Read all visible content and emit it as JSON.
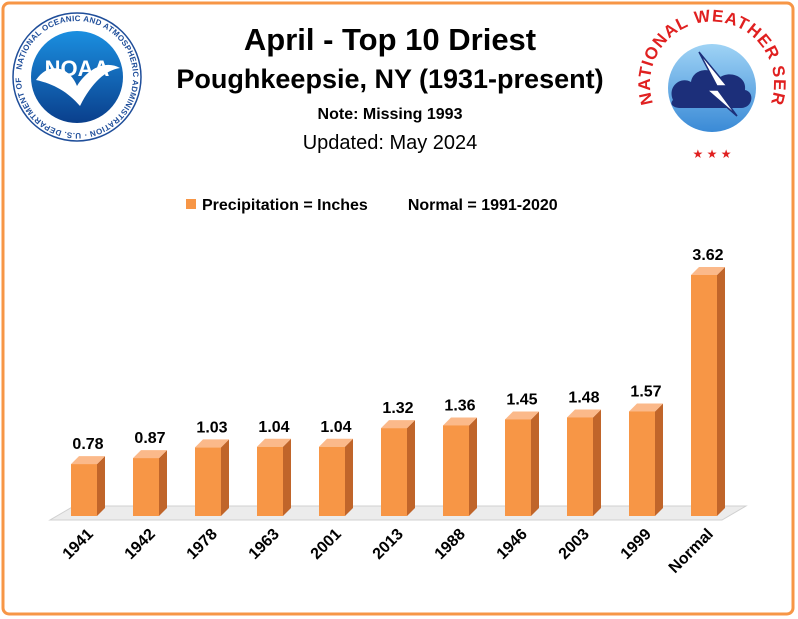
{
  "header": {
    "title": "April - Top 10 Driest",
    "subtitle": "Poughkeepsie, NY (1931-present)",
    "note": "Note: Missing 1993",
    "updated": "Updated:  May 2024"
  },
  "logos": {
    "noaa_text": "NOAA",
    "noaa_ring_text": "NATIONAL OCEANIC AND ATMOSPHERIC ADMINISTRATION · U.S. DEPARTMENT OF COMMERCE",
    "nws_ring_text": "NATIONAL WEATHER SERVICE"
  },
  "legend": {
    "series_label": "Precipitation = Inches",
    "normal_label": "Normal = 1991-2020"
  },
  "colors": {
    "bar_front": "#f79646",
    "bar_side": "#c0652a",
    "bar_top": "#fbb98a",
    "frame": "#f79646"
  },
  "chart_data": {
    "type": "bar",
    "categories": [
      "1941",
      "1942",
      "1978",
      "1963",
      "2001",
      "2013",
      "1988",
      "1946",
      "2003",
      "1999",
      "Normal"
    ],
    "values": [
      0.78,
      0.87,
      1.03,
      1.04,
      1.04,
      1.32,
      1.36,
      1.45,
      1.48,
      1.57,
      3.62
    ],
    "data_labels": [
      "0.78",
      "0.87",
      "1.03",
      "1.04",
      "1.04",
      "1.32",
      "1.36",
      "1.45",
      "1.48",
      "1.57",
      "3.62"
    ],
    "ylim": [
      0,
      3.62
    ],
    "grid": false,
    "legend_position": "top",
    "style": "3d-bar"
  }
}
